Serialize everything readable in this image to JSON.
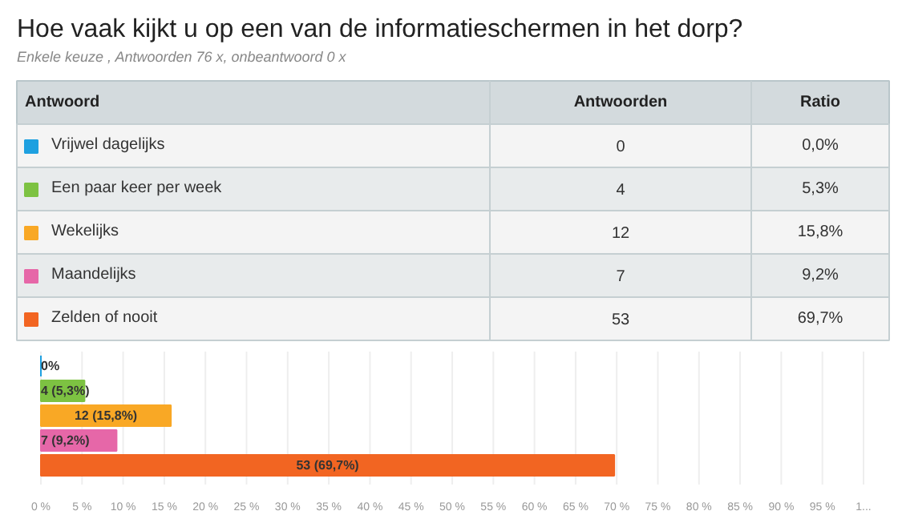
{
  "chart_data": {
    "type": "bar",
    "orientation": "horizontal",
    "title": "Hoe vaak kijkt u op een van de informatieschermen in het dorp?",
    "subtitle": "Enkele keuze , Antwoorden 76 x, onbeantwoord 0 x",
    "categories": [
      null
    ],
    "series": [
      {
        "name": "Vrijwel dagelijks",
        "color": "#1ea0e0",
        "values": [
          0
        ],
        "value_labels": [
          "0%"
        ]
      },
      {
        "name": "Een paar keer per week",
        "color": "#7dc242",
        "values": [
          5.3
        ],
        "value_labels": [
          "4 (5,3%)"
        ]
      },
      {
        "name": "Wekelijks",
        "color": "#f9a825",
        "values": [
          15.8
        ],
        "value_labels": [
          "12 (15,8%)"
        ]
      },
      {
        "name": "Maandelijks",
        "color": "#e667a8",
        "values": [
          9.2
        ],
        "value_labels": [
          "7 (9,2%)"
        ]
      },
      {
        "name": "Zelden of nooit",
        "color": "#f26522",
        "values": [
          69.7
        ],
        "value_labels": [
          "53 (69,7%)"
        ]
      }
    ],
    "annotations": [
      "Antwoord",
      "Antwoorden",
      "Ratio",
      "0",
      "0,0%",
      "4",
      "5,3%",
      "12",
      "15,8%",
      "7",
      "9,2%",
      "53",
      "69,7%"
    ],
    "xlim": [
      0,
      100
    ],
    "xticks": [
      {
        "value": 0,
        "label": "0 %"
      },
      {
        "value": 5,
        "label": "5 %"
      },
      {
        "value": 10,
        "label": "10 %"
      },
      {
        "value": 15,
        "label": "15 %"
      },
      {
        "value": 20,
        "label": "20 %"
      },
      {
        "value": 25,
        "label": "25 %"
      },
      {
        "value": 30,
        "label": "30 %"
      },
      {
        "value": 35,
        "label": "35 %"
      },
      {
        "value": 40,
        "label": "40 %"
      },
      {
        "value": 45,
        "label": "45 %"
      },
      {
        "value": 50,
        "label": "50 %"
      },
      {
        "value": 55,
        "label": "55 %"
      },
      {
        "value": 60,
        "label": "60 %"
      },
      {
        "value": 65,
        "label": "65 %"
      },
      {
        "value": 70,
        "label": "70 %"
      },
      {
        "value": 75,
        "label": "75 %"
      },
      {
        "value": 80,
        "label": "80 %"
      },
      {
        "value": 85,
        "label": "85 %"
      },
      {
        "value": 90,
        "label": "90 %"
      },
      {
        "value": 95,
        "label": "95 %"
      },
      {
        "value": 100,
        "label": "1..."
      }
    ],
    "grid": "x",
    "tick_labels": "x",
    "legend": "top left"
  }
}
